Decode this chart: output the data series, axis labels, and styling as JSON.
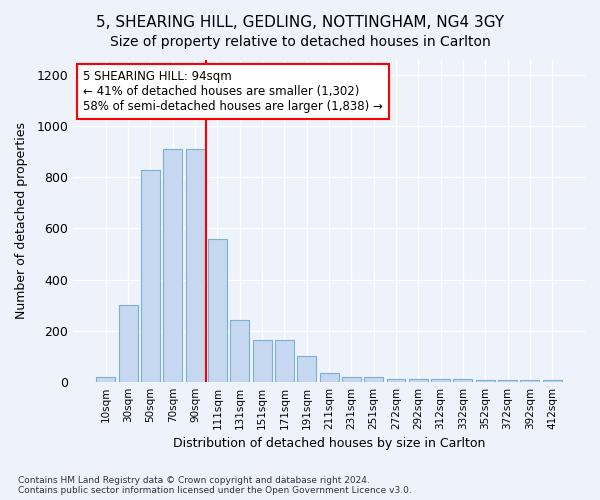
{
  "title": "5, SHEARING HILL, GEDLING, NOTTINGHAM, NG4 3GY",
  "subtitle": "Size of property relative to detached houses in Carlton",
  "xlabel": "Distribution of detached houses by size in Carlton",
  "ylabel": "Number of detached properties",
  "bar_color": "#c5d8f0",
  "bar_edge_color": "#7bafd4",
  "categories": [
    "10sqm",
    "30sqm",
    "50sqm",
    "70sqm",
    "90sqm",
    "111sqm",
    "131sqm",
    "151sqm",
    "171sqm",
    "191sqm",
    "211sqm",
    "231sqm",
    "251sqm",
    "272sqm",
    "292sqm",
    "312sqm",
    "332sqm",
    "352sqm",
    "372sqm",
    "392sqm",
    "412sqm"
  ],
  "values": [
    20,
    300,
    830,
    910,
    910,
    560,
    240,
    165,
    165,
    100,
    35,
    20,
    20,
    10,
    10,
    10,
    10,
    5,
    5,
    5,
    5
  ],
  "ylim": [
    0,
    1260
  ],
  "yticks": [
    0,
    200,
    400,
    600,
    800,
    1000,
    1200
  ],
  "red_line_index": 4,
  "annotation_line1": "5 SHEARING HILL: 94sqm",
  "annotation_line2": "← 41% of detached houses are smaller (1,302)",
  "annotation_line3": "58% of semi-detached houses are larger (1,838) →",
  "footer_text": "Contains HM Land Registry data © Crown copyright and database right 2024.\nContains public sector information licensed under the Open Government Licence v3.0.",
  "background_color": "#eef2fb",
  "plot_bg_color": "#eef2fb",
  "title_fontsize": 11,
  "subtitle_fontsize": 10
}
